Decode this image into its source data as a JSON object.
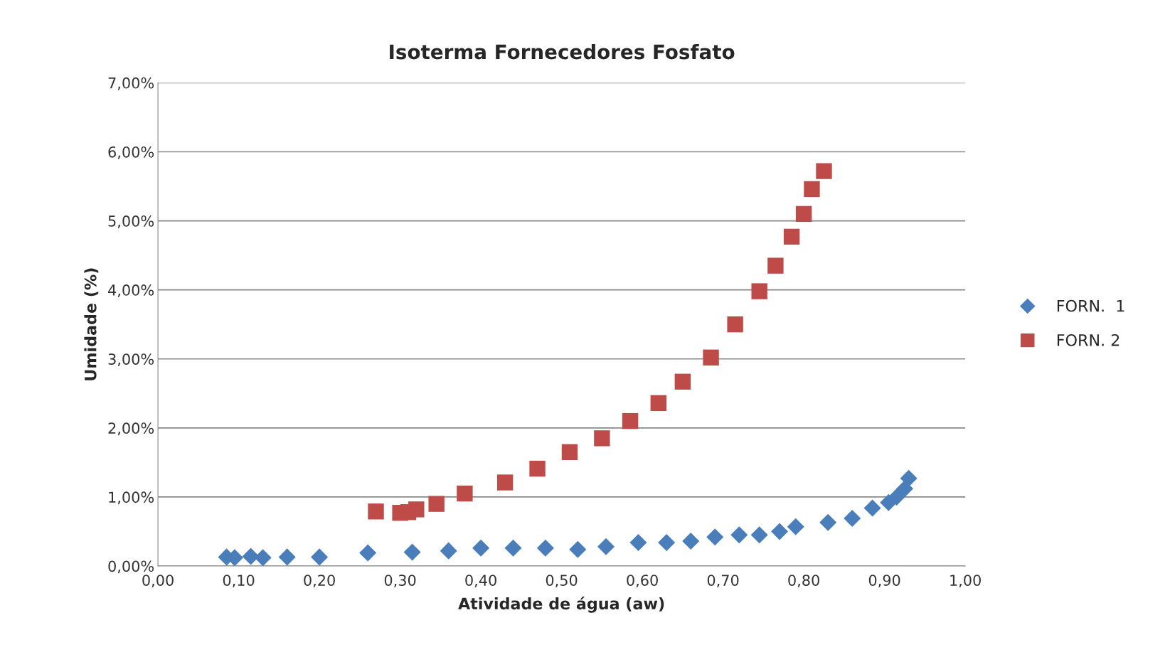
{
  "chart_data": {
    "type": "scatter",
    "title": "Isoterma Fornecedores Fosfato",
    "xlabel": "Atividade de água (aw)",
    "ylabel": "Umidade (%)",
    "xlim": [
      0,
      1
    ],
    "xticks": [
      {
        "value": 0,
        "label": "0,00"
      },
      {
        "value": 0.1,
        "label": "0,10"
      },
      {
        "value": 0.2,
        "label": "0,20"
      },
      {
        "value": 0.3,
        "label": "0,30"
      },
      {
        "value": 0.4,
        "label": "0,40"
      },
      {
        "value": 0.5,
        "label": "0,50"
      },
      {
        "value": 0.6,
        "label": "0,60"
      },
      {
        "value": 0.7,
        "label": "0,70"
      },
      {
        "value": 0.8,
        "label": "0,80"
      },
      {
        "value": 0.9,
        "label": "0,90"
      },
      {
        "value": 1,
        "label": "1,00"
      }
    ],
    "ylim": [
      0,
      7
    ],
    "yticks": [
      {
        "value": 0,
        "label": "0,00%"
      },
      {
        "value": 1,
        "label": "1,00%"
      },
      {
        "value": 2,
        "label": "2,00%"
      },
      {
        "value": 3,
        "label": "3,00%"
      },
      {
        "value": 4,
        "label": "4,00%"
      },
      {
        "value": 5,
        "label": "5,00%"
      },
      {
        "value": 6,
        "label": "6,00%"
      },
      {
        "value": 7,
        "label": "7,00%"
      }
    ],
    "grid": "y",
    "legend": "right",
    "series": [
      {
        "name": "FORN.  1",
        "color": "#4a7ebb",
        "marker": "diamond",
        "x": [
          0.085,
          0.095,
          0.115,
          0.13,
          0.16,
          0.2,
          0.26,
          0.315,
          0.36,
          0.4,
          0.44,
          0.48,
          0.52,
          0.555,
          0.595,
          0.63,
          0.66,
          0.69,
          0.72,
          0.745,
          0.77,
          0.79,
          0.83,
          0.86,
          0.885,
          0.905,
          0.915,
          0.925,
          0.93
        ],
        "values": [
          0.13,
          0.12,
          0.14,
          0.12,
          0.13,
          0.13,
          0.19,
          0.2,
          0.22,
          0.26,
          0.26,
          0.26,
          0.24,
          0.28,
          0.34,
          0.34,
          0.36,
          0.42,
          0.45,
          0.45,
          0.5,
          0.57,
          0.63,
          0.69,
          0.84,
          0.92,
          1.0,
          1.12,
          1.27
        ]
      },
      {
        "name": "FORN. 2",
        "color": "#be4b48",
        "marker": "square",
        "x": [
          0.27,
          0.3,
          0.31,
          0.32,
          0.345,
          0.38,
          0.43,
          0.47,
          0.51,
          0.55,
          0.585,
          0.62,
          0.65,
          0.685,
          0.715,
          0.745,
          0.765,
          0.785,
          0.8,
          0.81,
          0.825
        ],
        "values": [
          0.79,
          0.77,
          0.78,
          0.82,
          0.9,
          1.05,
          1.21,
          1.41,
          1.65,
          1.85,
          2.1,
          2.36,
          2.67,
          3.02,
          3.5,
          3.98,
          4.35,
          4.77,
          5.1,
          5.46,
          5.72
        ]
      }
    ]
  }
}
